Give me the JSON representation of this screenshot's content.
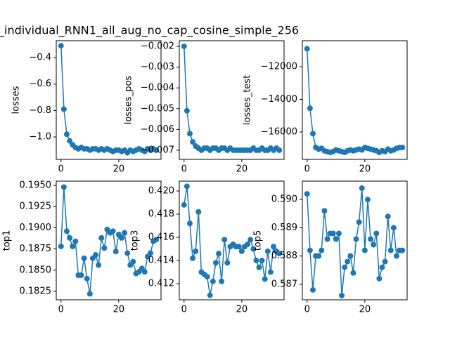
{
  "title": "_individual_RNN1_all_aug_no_cap_cosine_simple_256",
  "chart_data": [
    {
      "type": "line",
      "ylabel": "losses",
      "color": "#1f77b4",
      "x": [
        0,
        1,
        2,
        3,
        4,
        5,
        6,
        7,
        8,
        9,
        10,
        11,
        12,
        13,
        14,
        15,
        16,
        17,
        18,
        19,
        20,
        21,
        22,
        23,
        24,
        25,
        26,
        27,
        28,
        29,
        30,
        31,
        32,
        33
      ],
      "values": [
        -0.31,
        -0.79,
        -0.98,
        -1.03,
        -1.06,
        -1.08,
        -1.09,
        -1.08,
        -1.09,
        -1.09,
        -1.1,
        -1.09,
        -1.09,
        -1.1,
        -1.09,
        -1.1,
        -1.09,
        -1.1,
        -1.11,
        -1.1,
        -1.1,
        -1.11,
        -1.1,
        -1.12,
        -1.1,
        -1.11,
        -1.1,
        -1.09,
        -1.1,
        -1.11,
        -1.09,
        -1.1,
        -1.09,
        -1.1
      ],
      "xlim": [
        -1.65,
        34.65
      ],
      "ylim": [
        -1.17,
        -0.272
      ],
      "xticks": [
        0,
        20
      ],
      "yticks": [
        {
          "value": -1.0,
          "label": "−1.0"
        },
        {
          "value": -0.8,
          "label": "−0.8"
        },
        {
          "value": -0.6,
          "label": "−0.6"
        },
        {
          "value": -0.4,
          "label": "−0.4"
        }
      ]
    },
    {
      "type": "line",
      "ylabel": "losses_pos",
      "color": "#1f77b4",
      "x": [
        0,
        1,
        2,
        3,
        4,
        5,
        6,
        7,
        8,
        9,
        10,
        11,
        12,
        13,
        14,
        15,
        16,
        17,
        18,
        19,
        20,
        21,
        22,
        23,
        24,
        25,
        26,
        27,
        28,
        29,
        30,
        31,
        32,
        33
      ],
      "values": [
        -0.002,
        -0.0051,
        -0.0062,
        -0.0066,
        -0.0068,
        -0.0069,
        -0.007,
        -0.0069,
        -0.0069,
        -0.007,
        -0.0069,
        -0.0069,
        -0.007,
        -0.0069,
        -0.0069,
        -0.007,
        -0.0069,
        -0.007,
        -0.007,
        -0.007,
        -0.007,
        -0.007,
        -0.007,
        -0.007,
        -0.0069,
        -0.007,
        -0.007,
        -0.0069,
        -0.007,
        -0.007,
        -0.0069,
        -0.007,
        -0.0069,
        -0.007
      ],
      "xlim": [
        -1.65,
        34.65
      ],
      "ylim": [
        -0.00744,
        -0.00173
      ],
      "xticks": [
        0,
        20
      ],
      "yticks": [
        {
          "value": -0.007,
          "label": "−0.007"
        },
        {
          "value": -0.006,
          "label": "−0.006"
        },
        {
          "value": -0.005,
          "label": "−0.005"
        },
        {
          "value": -0.004,
          "label": "−0.004"
        },
        {
          "value": -0.003,
          "label": "−0.003"
        },
        {
          "value": -0.002,
          "label": "−0.002"
        }
      ]
    },
    {
      "type": "line",
      "ylabel": "losses_test",
      "color": "#1f77b4",
      "x": [
        0,
        1,
        2,
        3,
        4,
        5,
        6,
        7,
        8,
        9,
        10,
        11,
        12,
        13,
        14,
        15,
        16,
        17,
        18,
        19,
        20,
        21,
        22,
        23,
        24,
        25,
        26,
        27,
        28,
        29,
        30,
        31,
        32,
        33
      ],
      "values": [
        -10900,
        -14550,
        -16100,
        -16950,
        -17050,
        -17000,
        -17150,
        -17200,
        -17250,
        -17200,
        -17100,
        -17150,
        -17200,
        -17250,
        -17150,
        -17100,
        -17150,
        -17100,
        -17050,
        -17100,
        -16950,
        -17000,
        -17050,
        -17100,
        -17150,
        -17250,
        -17150,
        -17200,
        -17050,
        -17150,
        -17100,
        -17000,
        -16950,
        -16950
      ],
      "xlim": [
        -1.65,
        34.65
      ],
      "ylim": [
        -17677,
        -10409
      ],
      "xticks": [
        0,
        20
      ],
      "yticks": [
        {
          "value": -16000,
          "label": "−16000"
        },
        {
          "value": -14000,
          "label": "−14000"
        },
        {
          "value": -12000,
          "label": "−12000"
        }
      ]
    },
    {
      "type": "line",
      "ylabel": "top1",
      "color": "#1f77b4",
      "x": [
        0,
        1,
        2,
        3,
        4,
        5,
        6,
        7,
        8,
        9,
        10,
        11,
        12,
        13,
        14,
        15,
        16,
        17,
        18,
        19,
        20,
        21,
        22,
        23,
        24,
        25,
        26,
        27,
        28,
        29,
        30,
        31,
        32,
        33
      ],
      "values": [
        0.1878,
        0.1948,
        0.1896,
        0.1888,
        0.1878,
        0.1884,
        0.1844,
        0.1844,
        0.1864,
        0.184,
        0.1822,
        0.1864,
        0.1868,
        0.1856,
        0.1888,
        0.1876,
        0.1898,
        0.1894,
        0.1896,
        0.1872,
        0.1892,
        0.1888,
        0.1894,
        0.187,
        0.1856,
        0.186,
        0.1846,
        0.1848,
        0.1852,
        0.1848,
        0.1866,
        0.187,
        0.1884,
        0.1886
      ],
      "xlim": [
        -1.65,
        34.65
      ],
      "ylim": [
        0.1815,
        0.1955
      ],
      "xticks": [
        0,
        20
      ],
      "yticks": [
        0.1825,
        {
          "value": 0.185,
          "label": "0.1850"
        },
        0.1875,
        {
          "value": 0.19,
          "label": "0.1900"
        },
        0.1925,
        {
          "value": 0.195,
          "label": "0.1950"
        }
      ]
    },
    {
      "type": "line",
      "ylabel": "top3",
      "color": "#1f77b4",
      "x": [
        0,
        1,
        2,
        3,
        4,
        5,
        6,
        7,
        8,
        9,
        10,
        11,
        12,
        13,
        14,
        15,
        16,
        17,
        18,
        19,
        20,
        21,
        22,
        23,
        24,
        25,
        26,
        27,
        28,
        29,
        30,
        31,
        32,
        33
      ],
      "values": [
        0.4188,
        0.4204,
        0.4172,
        0.4142,
        0.4148,
        0.4182,
        0.413,
        0.4128,
        0.4126,
        0.411,
        0.4122,
        0.4138,
        0.4146,
        0.4122,
        0.4158,
        0.4138,
        0.4152,
        0.4154,
        0.4152,
        0.4152,
        0.4148,
        0.4152,
        0.4154,
        0.4158,
        0.415,
        0.414,
        0.4134,
        0.414,
        0.4124,
        0.4148,
        0.413,
        0.4152,
        0.4148,
        0.4146
      ],
      "xlim": [
        -1.65,
        34.65
      ],
      "ylim": [
        0.41061,
        0.42085
      ],
      "xticks": [
        0,
        20
      ],
      "yticks": [
        0.412,
        0.414,
        0.416,
        0.418,
        {
          "value": 0.42,
          "label": "0.420"
        }
      ]
    },
    {
      "type": "line",
      "ylabel": "top5",
      "color": "#1f77b4",
      "x": [
        0,
        1,
        2,
        3,
        4,
        5,
        6,
        7,
        8,
        9,
        10,
        11,
        12,
        13,
        14,
        15,
        16,
        17,
        18,
        19,
        20,
        21,
        22,
        23,
        24,
        25,
        26,
        27,
        28,
        29,
        30,
        31,
        32,
        33
      ],
      "values": [
        0.5902,
        0.5882,
        0.5868,
        0.588,
        0.588,
        0.5882,
        0.5896,
        0.5886,
        0.5888,
        0.5888,
        0.5886,
        0.5888,
        0.5866,
        0.5876,
        0.5878,
        0.588,
        0.5874,
        0.5886,
        0.5892,
        0.5904,
        0.5882,
        0.59,
        0.5886,
        0.5884,
        0.5888,
        0.5872,
        0.5876,
        0.5878,
        0.5894,
        0.5882,
        0.589,
        0.588,
        0.5882,
        0.5882
      ],
      "xlim": [
        -1.65,
        34.65
      ],
      "ylim": [
        0.58645,
        0.59065
      ],
      "xticks": [
        0,
        20
      ],
      "yticks": [
        0.587,
        0.588,
        0.589,
        {
          "value": 0.59,
          "label": "0.590"
        }
      ]
    }
  ]
}
